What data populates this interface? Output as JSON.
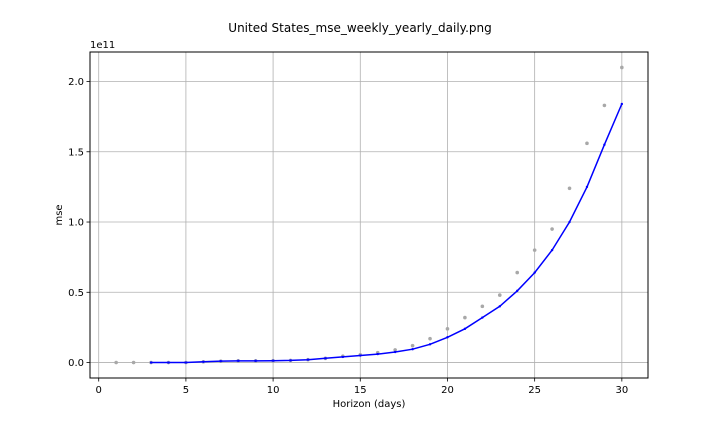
{
  "chart_data": {
    "type": "line",
    "title": "United States_mse_weekly_yearly_daily.png",
    "xlabel": "Horizon (days)",
    "ylabel": "mse",
    "y_offset_text": "1e11",
    "xlim": [
      -0.5,
      31.5
    ],
    "ylim": [
      -0.11,
      2.21
    ],
    "x_ticks": [
      0,
      5,
      10,
      15,
      20,
      25,
      30
    ],
    "y_ticks": [
      0.0,
      0.5,
      1.0,
      1.5,
      2.0
    ],
    "x_tick_labels": [
      "0",
      "5",
      "10",
      "15",
      "20",
      "25",
      "30"
    ],
    "y_tick_labels": [
      "0.0",
      "0.5",
      "1.0",
      "1.5",
      "2.0"
    ],
    "grid": true,
    "series": [
      {
        "kind": "scatter",
        "color": "#a8a8a8",
        "x": [
          1,
          2,
          3,
          4,
          5,
          6,
          7,
          8,
          9,
          10,
          11,
          12,
          13,
          14,
          15,
          16,
          17,
          18,
          19,
          20,
          21,
          22,
          23,
          24,
          25,
          26,
          27,
          28,
          29,
          30
        ],
        "y": [
          0.0,
          0.0,
          0.0,
          0.0,
          0.0,
          0.005,
          0.01,
          0.012,
          0.012,
          0.013,
          0.015,
          0.02,
          0.03,
          0.045,
          0.055,
          0.07,
          0.09,
          0.12,
          0.17,
          0.24,
          0.32,
          0.4,
          0.48,
          0.64,
          0.8,
          0.95,
          1.24,
          1.56,
          1.83,
          2.1
        ]
      },
      {
        "kind": "line",
        "color": "#0000ff",
        "x": [
          3,
          4,
          5,
          6,
          7,
          8,
          9,
          10,
          11,
          12,
          13,
          14,
          15,
          16,
          17,
          18,
          19,
          20,
          21,
          22,
          23,
          24,
          25,
          26,
          27,
          28,
          29,
          30
        ],
        "y": [
          0.0,
          0.0,
          0.0,
          0.005,
          0.01,
          0.012,
          0.012,
          0.013,
          0.015,
          0.02,
          0.03,
          0.04,
          0.05,
          0.06,
          0.075,
          0.095,
          0.13,
          0.18,
          0.24,
          0.32,
          0.4,
          0.51,
          0.64,
          0.8,
          1.0,
          1.25,
          1.55,
          1.84
        ]
      }
    ]
  }
}
